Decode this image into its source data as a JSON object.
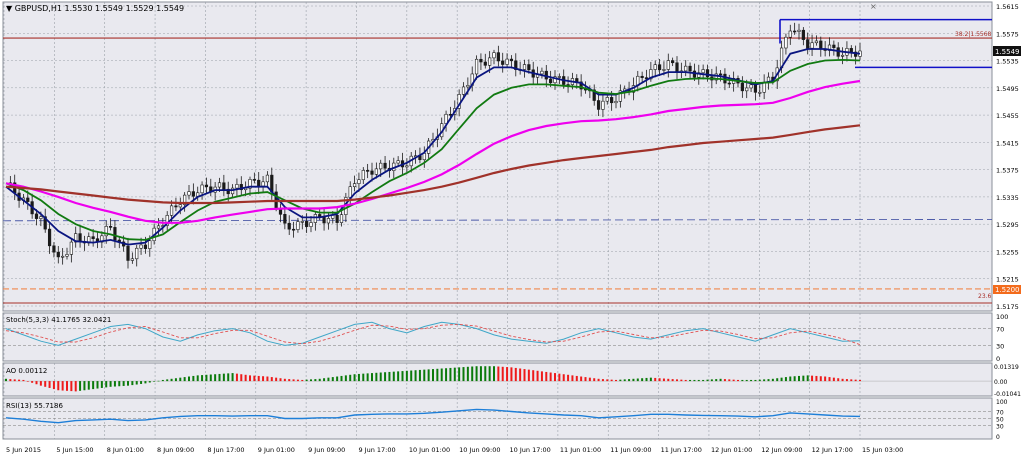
{
  "colors": {
    "background": "#ffffff",
    "panel_bg": "#e9e9ef",
    "grid": "#9aa0a8",
    "candle": "#1a1a1a",
    "ma_fast": "#0a1580",
    "ma_mid": "#117a11",
    "ma_slow": "#ee00ee",
    "ma_long": "#a0322a",
    "hline": "#a8302a",
    "blue_line": "#1010c8",
    "dashed_blue": "#4c5aa8",
    "ao_up": "#0b7a0b",
    "ao_down": "#ee1a1a",
    "rsi": "#1e7fd8",
    "stoch_main": "#3fa7c8",
    "stoch_signal": "#e05050"
  },
  "header": {
    "symbol_label": "▼ GBPUSD,H1  1.5530 1.5549 1.5529 1.5549"
  },
  "price_panel": {
    "ticks": [
      "1.5615",
      "1.5575",
      "1.5535",
      "1.5495",
      "1.5455",
      "1.5415",
      "1.5375",
      "1.5335",
      "1.5295",
      "1.5255",
      "1.5215",
      "1.5175"
    ],
    "current_price_label": "1.5549",
    "level_1520_label": "1.5200",
    "fib_382_label": "38.2|1.5568",
    "fib_236_label": "23.6"
  },
  "stoch_panel": {
    "label": "Stoch(5,3,3) 41.1765 32.0421",
    "ticks": [
      "100",
      "70",
      "30",
      "0"
    ]
  },
  "ao_panel": {
    "label": "AO 0.00112",
    "ticks": [
      "0.01319",
      "0.00",
      "-0.01041"
    ]
  },
  "rsi_panel": {
    "label": "RSI(13) 55.7186",
    "ticks": [
      "100",
      "70",
      "50",
      "30",
      "0"
    ]
  },
  "time_axis": [
    "5 Jun 2015",
    "5 Jun 15:00",
    "8 Jun 01:00",
    "8 Jun 09:00",
    "8 Jun 17:00",
    "9 Jun 01:00",
    "9 Jun 09:00",
    "9 Jun 17:00",
    "10 Jun 01:00",
    "10 Jun 09:00",
    "10 Jun 17:00",
    "11 Jun 01:00",
    "11 Jun 09:00",
    "11 Jun 17:00",
    "12 Jun 01:00",
    "12 Jun 09:00",
    "12 Jun 17:00",
    "15 Jun 03:00"
  ],
  "chart_data": {
    "type": "line",
    "title": "GBPUSD,H1",
    "ylim": [
      1.5175,
      1.5615
    ],
    "y_ticks": [
      1.5615,
      1.5575,
      1.5535,
      1.5495,
      1.5455,
      1.5415,
      1.5375,
      1.5335,
      1.5295,
      1.5255,
      1.5215,
      1.5175
    ],
    "x_tick_labels": [
      "5 Jun 2015",
      "5 Jun 15:00",
      "8 Jun 01:00",
      "8 Jun 09:00",
      "8 Jun 17:00",
      "9 Jun 01:00",
      "9 Jun 09:00",
      "9 Jun 17:00",
      "10 Jun 01:00",
      "10 Jun 09:00",
      "10 Jun 17:00",
      "11 Jun 01:00",
      "11 Jun 09:00",
      "11 Jun 17:00",
      "12 Jun 01:00",
      "12 Jun 09:00",
      "12 Jun 17:00",
      "15 Jun 03:00"
    ],
    "close_trace": [
      1.5355,
      1.533,
      1.53,
      1.524,
      1.5275,
      1.527,
      1.529,
      1.5245,
      1.5265,
      1.53,
      1.533,
      1.5345,
      1.535,
      1.5345,
      1.5355,
      1.536,
      1.529,
      1.5295,
      1.5305,
      1.53,
      1.536,
      1.5375,
      1.538,
      1.5385,
      1.54,
      1.544,
      1.548,
      1.553,
      1.554,
      1.553,
      1.552,
      1.551,
      1.5505,
      1.55,
      1.547,
      1.548,
      1.55,
      1.552,
      1.553,
      1.552,
      1.5515,
      1.551,
      1.55,
      1.549,
      1.551,
      1.5585,
      1.556,
      1.5555,
      1.5545,
      1.5549
    ],
    "series": [
      {
        "name": "MA fast",
        "values": [
          1.535,
          1.533,
          1.531,
          1.5285,
          1.527,
          1.5268,
          1.5272,
          1.5265,
          1.5268,
          1.529,
          1.5315,
          1.5335,
          1.5345,
          1.5345,
          1.535,
          1.535,
          1.532,
          1.5305,
          1.5305,
          1.531,
          1.534,
          1.536,
          1.5375,
          1.5385,
          1.54,
          1.543,
          1.547,
          1.551,
          1.5525,
          1.5525,
          1.5518,
          1.5512,
          1.5506,
          1.5502,
          1.5485,
          1.5485,
          1.5495,
          1.551,
          1.5518,
          1.5518,
          1.5515,
          1.5512,
          1.5506,
          1.55,
          1.5505,
          1.5545,
          1.5552,
          1.5552,
          1.5548,
          1.5545
        ]
      },
      {
        "name": "MA mid",
        "values": [
          1.5355,
          1.5345,
          1.533,
          1.531,
          1.5295,
          1.5285,
          1.528,
          1.5273,
          1.5272,
          1.528,
          1.5298,
          1.5315,
          1.5328,
          1.5334,
          1.534,
          1.5342,
          1.533,
          1.5318,
          1.5312,
          1.5312,
          1.5325,
          1.5342,
          1.5358,
          1.537,
          1.5385,
          1.5405,
          1.5435,
          1.5465,
          1.5485,
          1.5495,
          1.55,
          1.55,
          1.5498,
          1.5496,
          1.5488,
          1.5486,
          1.549,
          1.5498,
          1.5505,
          1.5508,
          1.5509,
          1.5508,
          1.5505,
          1.5502,
          1.5503,
          1.552,
          1.553,
          1.5535,
          1.5536,
          1.5535
        ]
      },
      {
        "name": "MA slow",
        "values": [
          1.5355,
          1.535,
          1.5343,
          1.5335,
          1.5326,
          1.5319,
          1.5313,
          1.5306,
          1.53,
          1.5297,
          1.5297,
          1.53,
          1.5305,
          1.5309,
          1.5313,
          1.5317,
          1.5318,
          1.5318,
          1.5318,
          1.532,
          1.5325,
          1.5332,
          1.534,
          1.5348,
          1.5357,
          1.5368,
          1.5382,
          1.5398,
          1.5413,
          1.5424,
          1.5433,
          1.5439,
          1.5443,
          1.5446,
          1.5447,
          1.5449,
          1.5452,
          1.5456,
          1.5461,
          1.5464,
          1.5467,
          1.5469,
          1.547,
          1.5471,
          1.5473,
          1.548,
          1.5489,
          1.5496,
          1.5501,
          1.5505
        ]
      },
      {
        "name": "MA long",
        "values": [
          1.535,
          1.5348,
          1.5346,
          1.5343,
          1.534,
          1.5337,
          1.5334,
          1.5331,
          1.5329,
          1.5327,
          1.5326,
          1.5326,
          1.5326,
          1.5327,
          1.5328,
          1.5329,
          1.5329,
          1.5329,
          1.5329,
          1.5329,
          1.5331,
          1.5334,
          1.5337,
          1.5341,
          1.5345,
          1.535,
          1.5356,
          1.5363,
          1.537,
          1.5376,
          1.5381,
          1.5385,
          1.5389,
          1.5392,
          1.5395,
          1.5398,
          1.5401,
          1.5404,
          1.5408,
          1.5411,
          1.5414,
          1.5416,
          1.5418,
          1.542,
          1.5422,
          1.5426,
          1.543,
          1.5434,
          1.5437,
          1.544
        ]
      }
    ],
    "horizontal_levels": [
      1.5568,
      1.52,
      1.5175
    ],
    "stoch_main": [
      70,
      55,
      40,
      30,
      45,
      60,
      75,
      80,
      70,
      50,
      40,
      55,
      65,
      70,
      60,
      40,
      30,
      35,
      50,
      65,
      80,
      85,
      70,
      60,
      75,
      85,
      80,
      70,
      55,
      45,
      40,
      35,
      45,
      60,
      70,
      60,
      50,
      45,
      55,
      65,
      70,
      60,
      50,
      40,
      55,
      70,
      60,
      50,
      40,
      41
    ],
    "stoch_signal": [
      65,
      60,
      50,
      38,
      38,
      48,
      62,
      72,
      75,
      62,
      48,
      48,
      58,
      66,
      66,
      52,
      38,
      34,
      40,
      52,
      66,
      78,
      76,
      68,
      70,
      78,
      80,
      76,
      64,
      52,
      44,
      38,
      40,
      50,
      62,
      64,
      56,
      48,
      50,
      58,
      66,
      64,
      56,
      46,
      48,
      60,
      64,
      56,
      46,
      32
    ],
    "ao_values": [
      0.002,
      0.001,
      -0.004,
      -0.008,
      -0.009,
      -0.007,
      -0.005,
      -0.004,
      -0.002,
      0.001,
      0.003,
      0.005,
      0.006,
      0.007,
      0.005,
      0.004,
      0.002,
      0.001,
      0.002,
      0.004,
      0.006,
      0.007,
      0.008,
      0.009,
      0.01,
      0.011,
      0.012,
      0.013,
      0.013,
      0.012,
      0.01,
      0.008,
      0.006,
      0.004,
      0.002,
      0.001,
      0.002,
      0.003,
      0.002,
      0.001,
      0.001,
      0.002,
      0.001,
      0.001,
      0.002,
      0.004,
      0.005,
      0.004,
      0.002,
      0.001
    ],
    "rsi_values": [
      52,
      48,
      42,
      38,
      44,
      46,
      48,
      44,
      46,
      52,
      56,
      58,
      58,
      57,
      58,
      58,
      50,
      50,
      52,
      52,
      60,
      62,
      63,
      63,
      65,
      68,
      72,
      76,
      74,
      70,
      66,
      63,
      60,
      58,
      52,
      55,
      58,
      62,
      62,
      60,
      59,
      58,
      57,
      55,
      58,
      66,
      63,
      60,
      57,
      56
    ]
  }
}
